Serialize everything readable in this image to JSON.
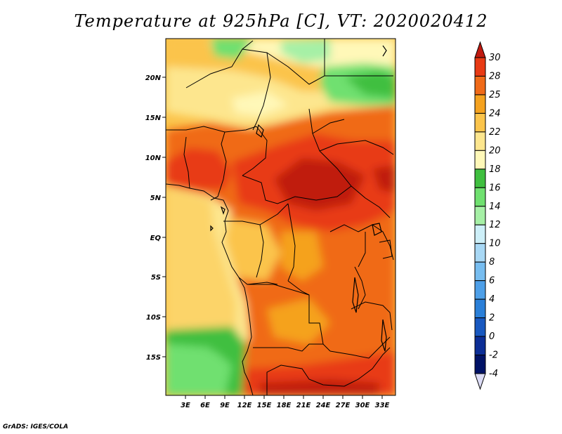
{
  "title": "Temperature at 925hPa [C], VT: 2020020412",
  "credit": "GrADS: IGES/COLA",
  "map": {
    "lat_labels": [
      "20N",
      "15N",
      "10N",
      "5N",
      "EQ",
      "5S",
      "10S",
      "15S"
    ],
    "lon_labels": [
      "3E",
      "6E",
      "9E",
      "12E",
      "15E",
      "18E",
      "21E",
      "24E",
      "27E",
      "30E",
      "33E"
    ]
  },
  "colorbar": {
    "levels": [
      "30",
      "28",
      "25",
      "24",
      "22",
      "20",
      "18",
      "16",
      "14",
      "12",
      "10",
      "8",
      "6",
      "4",
      "2",
      "0",
      "-2",
      "-4"
    ],
    "colors": [
      "#c01a10",
      "#e83a14",
      "#f06a18",
      "#f5a21f",
      "#fbc44b",
      "#fde68e",
      "#fff8b8",
      "#3fbf3f",
      "#6fe06f",
      "#a6f0a6",
      "#cdeff8",
      "#a8d8f5",
      "#77bdf0",
      "#4d9fe8",
      "#2a7fd8",
      "#1858c0",
      "#0c2e96",
      "#001266",
      "#dcdcf6"
    ]
  }
}
